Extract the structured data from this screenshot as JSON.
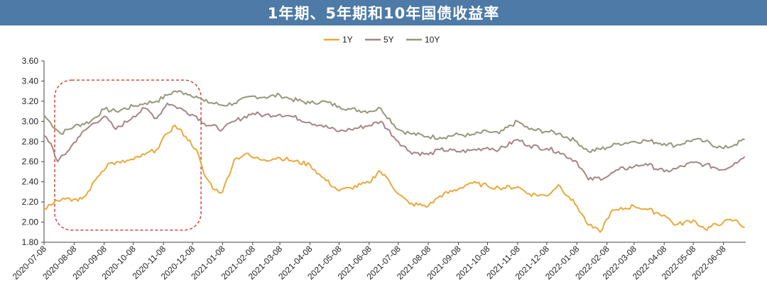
{
  "title": "1年期、5年期和10年国债收益率",
  "colors": {
    "title_bg": "#4d7aa6",
    "y1": "#e8a93a",
    "y5": "#a58585",
    "y10": "#96967a",
    "highlight": "#d9352b"
  },
  "chart_data": {
    "type": "line",
    "title": "1年期、5年期和10年国债收益率",
    "xlabel": "",
    "ylabel": "",
    "ylim": [
      1.8,
      3.6
    ],
    "yticks": [
      "3.60",
      "3.40",
      "3.20",
      "3.00",
      "2.80",
      "2.60",
      "2.40",
      "2.20",
      "2.00",
      "1.80"
    ],
    "xticks": [
      "2020-07-08",
      "2020-08-08",
      "2020-09-08",
      "2020-10-08",
      "2020-11-08",
      "2020-12-08",
      "2021-01-08",
      "2021-02-08",
      "2021-03-08",
      "2021-04-08",
      "2021-05-08",
      "2021-06-08",
      "2021-07-08",
      "2021-08-08",
      "2021-09-08",
      "2021-10-08",
      "2021-11-08",
      "2021-12-08",
      "2022-01-08",
      "2022-02-08",
      "2022-03-08",
      "2022-04-08",
      "2022-05-08",
      "2022-06-08"
    ],
    "legend_position": "top-center",
    "grid": false,
    "highlight_box": {
      "x_range": [
        "2020-07-08",
        "2020-12-08"
      ],
      "y_range": [
        1.92,
        3.41
      ],
      "style": "dashed-red"
    },
    "series": [
      {
        "name": "1Y",
        "color": "#e8a93a",
        "x": [
          "2020-07-08",
          "2020-07-20",
          "2020-08-01",
          "2020-08-12",
          "2020-08-20",
          "2020-09-01",
          "2020-09-12",
          "2020-09-25",
          "2020-10-08",
          "2020-10-20",
          "2020-11-01",
          "2020-11-12",
          "2020-11-20",
          "2020-12-01",
          "2020-12-12",
          "2020-12-20",
          "2020-12-31",
          "2021-01-08",
          "2021-01-20",
          "2021-02-01",
          "2021-02-08",
          "2021-02-20",
          "2021-03-08",
          "2021-03-20",
          "2021-04-08",
          "2021-04-20",
          "2021-05-08",
          "2021-05-20",
          "2021-06-08",
          "2021-06-18",
          "2021-06-28",
          "2021-07-08",
          "2021-07-20",
          "2021-08-08",
          "2021-08-20",
          "2021-09-08",
          "2021-09-20",
          "2021-10-08",
          "2021-10-20",
          "2021-11-08",
          "2021-11-20",
          "2021-12-08",
          "2021-12-20",
          "2021-12-31",
          "2022-01-08",
          "2022-01-20",
          "2022-02-01",
          "2022-02-12",
          "2022-02-20",
          "2022-03-08",
          "2022-03-20",
          "2022-04-08",
          "2022-04-20",
          "2022-05-08",
          "2022-05-20",
          "2022-06-08",
          "2022-06-20",
          "2022-06-30"
        ],
        "values": [
          2.13,
          2.22,
          2.24,
          2.21,
          2.26,
          2.45,
          2.58,
          2.59,
          2.62,
          2.67,
          2.72,
          2.88,
          2.96,
          2.85,
          2.72,
          2.47,
          2.32,
          2.3,
          2.62,
          2.68,
          2.64,
          2.62,
          2.64,
          2.61,
          2.57,
          2.45,
          2.31,
          2.34,
          2.39,
          2.51,
          2.42,
          2.28,
          2.18,
          2.16,
          2.26,
          2.33,
          2.39,
          2.36,
          2.34,
          2.35,
          2.28,
          2.26,
          2.37,
          2.25,
          2.16,
          1.97,
          1.9,
          2.1,
          2.12,
          2.16,
          2.13,
          2.07,
          1.97,
          2.02,
          1.93,
          2.0,
          2.02,
          1.95
        ]
      },
      {
        "name": "5Y",
        "color": "#a58585",
        "x": [
          "2020-07-08",
          "2020-07-15",
          "2020-07-22",
          "2020-08-01",
          "2020-08-12",
          "2020-08-25",
          "2020-09-08",
          "2020-09-20",
          "2020-10-08",
          "2020-10-20",
          "2020-11-01",
          "2020-11-12",
          "2020-11-20",
          "2020-12-01",
          "2020-12-12",
          "2020-12-20",
          "2021-01-08",
          "2021-01-20",
          "2021-02-08",
          "2021-02-20",
          "2021-03-08",
          "2021-03-20",
          "2021-04-08",
          "2021-04-20",
          "2021-05-08",
          "2021-05-20",
          "2021-06-08",
          "2021-06-20",
          "2021-07-08",
          "2021-07-20",
          "2021-08-08",
          "2021-08-20",
          "2021-09-08",
          "2021-09-20",
          "2021-10-08",
          "2021-10-20",
          "2021-11-08",
          "2021-11-20",
          "2021-12-08",
          "2021-12-20",
          "2022-01-08",
          "2022-01-20",
          "2022-02-08",
          "2022-02-20",
          "2022-03-08",
          "2022-03-20",
          "2022-04-08",
          "2022-04-20",
          "2022-05-08",
          "2022-05-20",
          "2022-06-08",
          "2022-06-20",
          "2022-06-30"
        ],
        "values": [
          2.86,
          2.78,
          2.6,
          2.7,
          2.84,
          2.96,
          3.05,
          2.92,
          3.05,
          3.13,
          3.03,
          3.18,
          3.15,
          3.1,
          3.05,
          2.98,
          2.92,
          3.0,
          3.08,
          3.06,
          3.07,
          3.05,
          2.99,
          2.96,
          2.9,
          2.92,
          2.96,
          3.0,
          2.8,
          2.7,
          2.67,
          2.72,
          2.7,
          2.71,
          2.74,
          2.72,
          2.82,
          2.76,
          2.73,
          2.7,
          2.6,
          2.42,
          2.45,
          2.52,
          2.55,
          2.58,
          2.5,
          2.53,
          2.59,
          2.57,
          2.52,
          2.59,
          2.65
        ]
      },
      {
        "name": "10Y",
        "color": "#96967a",
        "x": [
          "2020-07-08",
          "2020-07-15",
          "2020-07-25",
          "2020-08-08",
          "2020-08-25",
          "2020-09-08",
          "2020-09-20",
          "2020-10-08",
          "2020-10-20",
          "2020-11-01",
          "2020-11-12",
          "2020-11-20",
          "2020-12-01",
          "2020-12-12",
          "2020-12-20",
          "2021-01-08",
          "2021-01-20",
          "2021-02-08",
          "2021-02-20",
          "2021-03-08",
          "2021-03-20",
          "2021-04-08",
          "2021-04-20",
          "2021-05-08",
          "2021-05-20",
          "2021-06-08",
          "2021-06-20",
          "2021-07-08",
          "2021-07-20",
          "2021-08-08",
          "2021-08-20",
          "2021-09-08",
          "2021-09-20",
          "2021-10-08",
          "2021-10-20",
          "2021-11-08",
          "2021-11-20",
          "2021-12-08",
          "2021-12-20",
          "2022-01-08",
          "2022-01-20",
          "2022-02-08",
          "2022-02-20",
          "2022-03-08",
          "2022-03-20",
          "2022-04-08",
          "2022-04-20",
          "2022-05-08",
          "2022-05-20",
          "2022-06-08",
          "2022-06-20",
          "2022-06-30"
        ],
        "values": [
          3.06,
          2.98,
          2.88,
          2.95,
          3.0,
          3.12,
          3.1,
          3.15,
          3.18,
          3.2,
          3.26,
          3.3,
          3.28,
          3.25,
          3.2,
          3.16,
          3.18,
          3.25,
          3.24,
          3.26,
          3.22,
          3.18,
          3.2,
          3.15,
          3.12,
          3.1,
          3.13,
          2.92,
          2.88,
          2.85,
          2.84,
          2.87,
          2.86,
          2.9,
          2.88,
          3.0,
          2.92,
          2.9,
          2.88,
          2.8,
          2.7,
          2.74,
          2.78,
          2.8,
          2.81,
          2.78,
          2.76,
          2.82,
          2.8,
          2.73,
          2.77,
          2.82
        ]
      }
    ]
  }
}
